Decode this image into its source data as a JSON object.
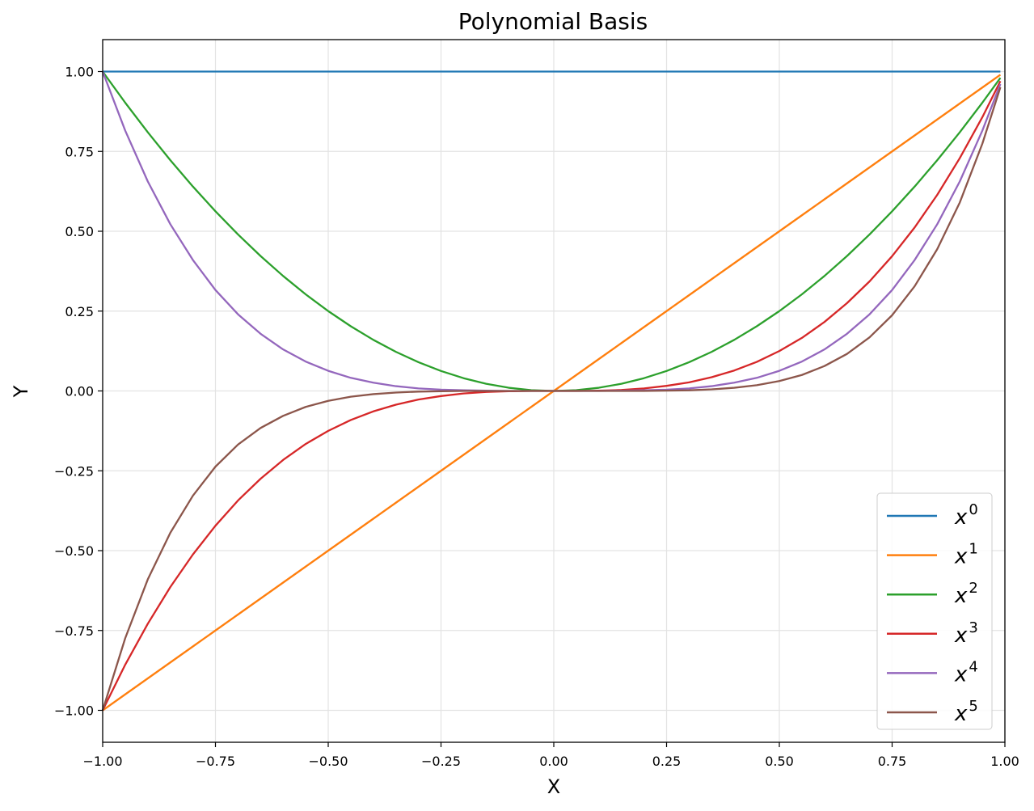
{
  "chart_data": {
    "type": "line",
    "title": "Polynomial Basis",
    "xlabel": "X",
    "ylabel": "Y",
    "xlim": [
      -1.0,
      1.0
    ],
    "ylim": [
      -1.1,
      1.1
    ],
    "grid": true,
    "legend_position": "lower-right",
    "x_ticks": [
      -1.0,
      -0.75,
      -0.5,
      -0.25,
      0.0,
      0.25,
      0.5,
      0.75,
      1.0
    ],
    "x_tick_labels": [
      "−1.00",
      "−0.75",
      "−0.50",
      "−0.25",
      "0.00",
      "0.25",
      "0.50",
      "0.75",
      "1.00"
    ],
    "y_ticks": [
      1.0,
      0.75,
      0.5,
      0.25,
      0.0,
      -0.25,
      -0.5,
      -0.75,
      -1.0
    ],
    "y_tick_labels": [
      "1.00",
      "0.75",
      "0.50",
      "0.25",
      "0.00",
      "−0.25",
      "−0.50",
      "−0.75",
      "−1.00"
    ],
    "x": [
      -1.0,
      -0.95,
      -0.9,
      -0.85,
      -0.8,
      -0.75,
      -0.7,
      -0.65,
      -0.6,
      -0.55,
      -0.5,
      -0.45,
      -0.4,
      -0.35,
      -0.3,
      -0.25,
      -0.2,
      -0.15,
      -0.1,
      -0.05,
      0.0,
      0.05,
      0.1,
      0.15,
      0.2,
      0.25,
      0.3,
      0.35,
      0.4,
      0.45,
      0.5,
      0.55,
      0.6,
      0.65,
      0.7,
      0.75,
      0.8,
      0.85,
      0.9,
      0.95,
      0.99
    ],
    "series": [
      {
        "name": "x",
        "exponent": "0",
        "color": "#1f77b4",
        "values": [
          1,
          1,
          1,
          1,
          1,
          1,
          1,
          1,
          1,
          1,
          1,
          1,
          1,
          1,
          1,
          1,
          1,
          1,
          1,
          1,
          1,
          1,
          1,
          1,
          1,
          1,
          1,
          1,
          1,
          1,
          1,
          1,
          1,
          1,
          1,
          1,
          1,
          1,
          1,
          1,
          1
        ]
      },
      {
        "name": "x",
        "exponent": "1",
        "color": "#ff7f0e",
        "values": [
          -1.0,
          -0.95,
          -0.9,
          -0.85,
          -0.8,
          -0.75,
          -0.7,
          -0.65,
          -0.6,
          -0.55,
          -0.5,
          -0.45,
          -0.4,
          -0.35,
          -0.3,
          -0.25,
          -0.2,
          -0.15,
          -0.1,
          -0.05,
          0.0,
          0.05,
          0.1,
          0.15,
          0.2,
          0.25,
          0.3,
          0.35,
          0.4,
          0.45,
          0.5,
          0.55,
          0.6,
          0.65,
          0.7,
          0.75,
          0.8,
          0.85,
          0.9,
          0.95,
          0.99
        ]
      },
      {
        "name": "x",
        "exponent": "2",
        "color": "#2ca02c",
        "values": [
          1.0,
          0.9025,
          0.81,
          0.7225,
          0.64,
          0.5625,
          0.49,
          0.4225,
          0.36,
          0.3025,
          0.25,
          0.2025,
          0.16,
          0.1225,
          0.09,
          0.0625,
          0.04,
          0.0225,
          0.01,
          0.0025,
          0.0,
          0.0025,
          0.01,
          0.0225,
          0.04,
          0.0625,
          0.09,
          0.1225,
          0.16,
          0.2025,
          0.25,
          0.3025,
          0.36,
          0.4225,
          0.49,
          0.5625,
          0.64,
          0.7225,
          0.81,
          0.9025,
          0.9801
        ]
      },
      {
        "name": "x",
        "exponent": "3",
        "color": "#d62728",
        "values": [
          -1.0,
          -0.857,
          -0.729,
          -0.614,
          -0.512,
          -0.422,
          -0.343,
          -0.275,
          -0.216,
          -0.166,
          -0.125,
          -0.091,
          -0.064,
          -0.043,
          -0.027,
          -0.016,
          -0.008,
          -0.003,
          -0.001,
          0.0,
          0.0,
          0.0,
          0.001,
          0.003,
          0.008,
          0.016,
          0.027,
          0.043,
          0.064,
          0.091,
          0.125,
          0.166,
          0.216,
          0.275,
          0.343,
          0.422,
          0.512,
          0.614,
          0.729,
          0.857,
          0.97
        ]
      },
      {
        "name": "x",
        "exponent": "4",
        "color": "#9467bd",
        "values": [
          1.0,
          0.815,
          0.656,
          0.522,
          0.41,
          0.316,
          0.24,
          0.179,
          0.13,
          0.092,
          0.063,
          0.041,
          0.026,
          0.015,
          0.008,
          0.004,
          0.002,
          0.001,
          0.0,
          0.0,
          0.0,
          0.0,
          0.0,
          0.001,
          0.002,
          0.004,
          0.008,
          0.015,
          0.026,
          0.041,
          0.063,
          0.092,
          0.13,
          0.179,
          0.24,
          0.316,
          0.41,
          0.522,
          0.656,
          0.815,
          0.961
        ]
      },
      {
        "name": "x",
        "exponent": "5",
        "color": "#8c564b",
        "values": [
          -1.0,
          -0.774,
          -0.59,
          -0.444,
          -0.328,
          -0.237,
          -0.168,
          -0.116,
          -0.078,
          -0.05,
          -0.031,
          -0.018,
          -0.01,
          -0.005,
          -0.002,
          -0.001,
          0.0,
          0.0,
          0.0,
          0.0,
          0.0,
          0.0,
          0.0,
          0.0,
          0.0,
          0.001,
          0.002,
          0.005,
          0.01,
          0.018,
          0.031,
          0.05,
          0.078,
          0.116,
          0.168,
          0.237,
          0.328,
          0.444,
          0.59,
          0.774,
          0.951
        ]
      }
    ]
  }
}
